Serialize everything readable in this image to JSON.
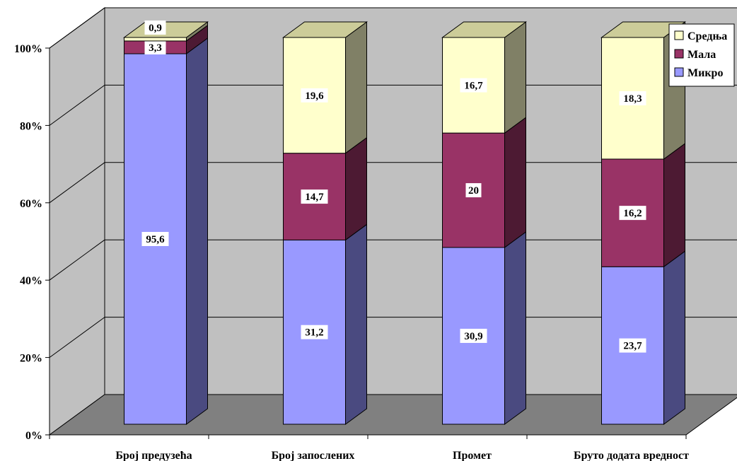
{
  "chart_data": {
    "type": "bar",
    "stacked": true,
    "percent_stacked": true,
    "three_d": true,
    "categories": [
      "Број предузећа",
      "Број запослених",
      "Промет",
      "Бруто додата вредност"
    ],
    "series": [
      {
        "name": "Микро",
        "values": [
          95.6,
          31.2,
          30.9,
          23.7
        ],
        "labels": [
          "95,6",
          "31,2",
          "30,9",
          "23,7"
        ],
        "color": "#9999ff",
        "side_color": "#4a4a80"
      },
      {
        "name": "Мала",
        "values": [
          3.3,
          14.7,
          20,
          16.2
        ],
        "labels": [
          "3,3",
          "14,7",
          "20",
          "16,2"
        ],
        "color": "#993366",
        "side_color": "#4d1a33"
      },
      {
        "name": "Средња",
        "values": [
          0.9,
          19.6,
          16.7,
          18.3
        ],
        "labels": [
          "0,9",
          "19,6",
          "16,7",
          "18,3"
        ],
        "color": "#ffffcc",
        "side_color": "#808066"
      }
    ],
    "y_ticks": [
      "0%",
      "20%",
      "40%",
      "60%",
      "80%",
      "100%"
    ],
    "ylim": [
      0,
      100
    ],
    "grid": true,
    "legend_position": "top-right",
    "wall_color": "#c0c0c0",
    "floor_color": "#808080"
  }
}
